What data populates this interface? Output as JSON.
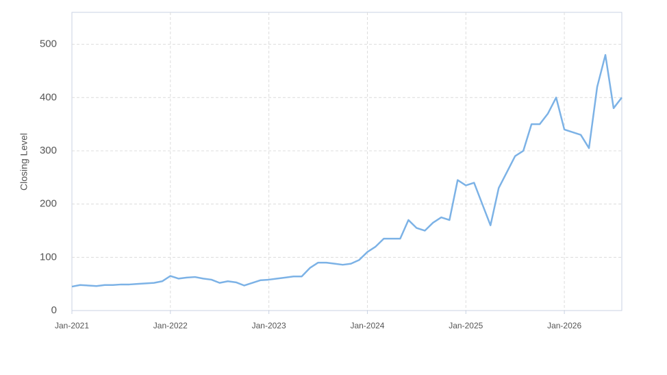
{
  "chart_data": {
    "type": "line",
    "y_label": "Closing Level",
    "x": [
      "2021-01",
      "2021-02",
      "2021-03",
      "2021-04",
      "2021-05",
      "2021-06",
      "2021-07",
      "2021-08",
      "2021-09",
      "2021-10",
      "2021-11",
      "2021-12",
      "2022-01",
      "2022-02",
      "2022-03",
      "2022-04",
      "2022-05",
      "2022-06",
      "2022-07",
      "2022-08",
      "2022-09",
      "2022-10",
      "2022-11",
      "2022-12",
      "2023-01",
      "2023-02",
      "2023-03",
      "2023-04",
      "2023-05",
      "2023-06",
      "2023-07",
      "2023-08",
      "2023-09",
      "2023-10",
      "2023-11",
      "2023-12",
      "2024-01",
      "2024-02",
      "2024-03",
      "2024-04",
      "2024-05",
      "2024-06",
      "2024-07",
      "2024-08",
      "2024-09",
      "2024-10",
      "2024-11",
      "2024-12",
      "2025-01",
      "2025-02",
      "2025-03",
      "2025-04",
      "2025-05",
      "2025-06",
      "2025-07",
      "2025-08",
      "2025-09",
      "2025-10",
      "2025-11",
      "2025-12",
      "2026-01",
      "2026-02",
      "2026-03",
      "2026-04",
      "2026-05",
      "2026-06",
      "2026-07",
      "2026-08"
    ],
    "series": [
      {
        "name": "Closing Level",
        "color": "#7cb2e6",
        "values": [
          45,
          48,
          47,
          46,
          48,
          48,
          49,
          49,
          50,
          51,
          52,
          55,
          65,
          60,
          62,
          63,
          60,
          58,
          52,
          55,
          53,
          47,
          52,
          57,
          58,
          60,
          62,
          64,
          64,
          80,
          90,
          90,
          88,
          86,
          88,
          95,
          110,
          120,
          135,
          135,
          135,
          170,
          155,
          150,
          165,
          175,
          170,
          245,
          235,
          240,
          200,
          160,
          230,
          260,
          290,
          300,
          350,
          350,
          370,
          400,
          340,
          335,
          330,
          305,
          420,
          480,
          380,
          400
        ]
      }
    ],
    "xlim": [
      "2021-01",
      "2026-08"
    ],
    "xticks": [
      {
        "value": "2021-01",
        "label": "Jan-2021"
      },
      {
        "value": "2022-01",
        "label": "Jan-2022"
      },
      {
        "value": "2023-01",
        "label": "Jan-2023"
      },
      {
        "value": "2024-01",
        "label": "Jan-2024"
      },
      {
        "value": "2025-01",
        "label": "Jan-2025"
      },
      {
        "value": "2026-01",
        "label": "Jan-2026"
      }
    ],
    "ylim": [
      0,
      560
    ],
    "yticks": [
      0,
      100,
      200,
      300,
      400,
      500
    ],
    "grid": true
  }
}
